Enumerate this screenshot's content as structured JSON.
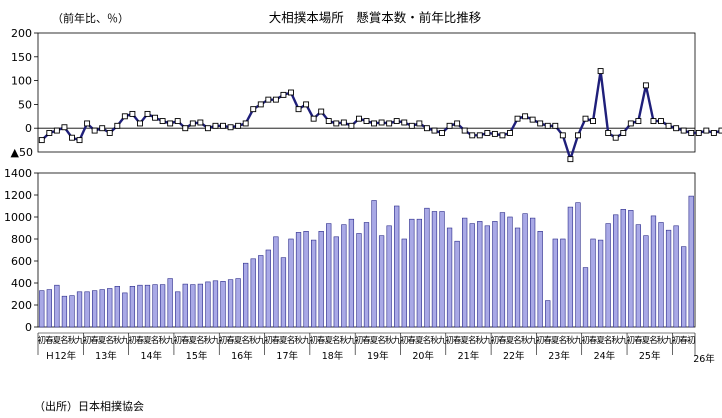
{
  "chart_data": [
    {
      "type": "line",
      "title": "大相撲本場所　懸賞本数・前年比推移",
      "ylabel": "（前年比、％）",
      "ylim": [
        -50,
        200
      ],
      "yticks": [
        200,
        150,
        100,
        50,
        0
      ],
      "neg_tick_label": "▲50",
      "zero_line": true,
      "color": "#1f1f7a",
      "marker": "hollow-square",
      "values": [
        -25,
        -10,
        -5,
        2,
        -20,
        -25,
        10,
        -5,
        0,
        -10,
        5,
        25,
        30,
        10,
        30,
        22,
        15,
        10,
        15,
        0,
        10,
        12,
        0,
        5,
        5,
        2,
        5,
        10,
        40,
        50,
        60,
        60,
        70,
        75,
        40,
        50,
        20,
        35,
        15,
        10,
        12,
        5,
        20,
        15,
        10,
        12,
        10,
        15,
        12,
        5,
        10,
        0,
        -5,
        -10,
        5,
        10,
        -5,
        -15,
        -15,
        -10,
        -12,
        -15,
        -10,
        20,
        25,
        18,
        10,
        5,
        5,
        -15,
        -65,
        -15,
        20,
        15,
        120,
        -10,
        -20,
        -10,
        10,
        15,
        90,
        15,
        15,
        5,
        0,
        -5,
        -10,
        -10,
        -5,
        -10,
        -5,
        10
      ]
    },
    {
      "type": "bar",
      "ylim": [
        0,
        1400
      ],
      "yticks": [
        1400,
        1200,
        1000,
        800,
        600,
        400,
        200,
        0
      ],
      "bar_fill": "#a9a9e6",
      "bar_stroke": "#2a2a8a",
      "season_labels": [
        "初",
        "春",
        "夏",
        "名",
        "秋",
        "九"
      ],
      "last_label": "初",
      "year_labels": [
        "Ｈ12年",
        "13年",
        "14年",
        "15年",
        "16年",
        "17年",
        "18年",
        "19年",
        "20年",
        "21年",
        "22年",
        "23年",
        "24年",
        "25年",
        "26年"
      ],
      "values": [
        330,
        340,
        380,
        280,
        285,
        320,
        320,
        330,
        340,
        350,
        370,
        310,
        370,
        380,
        380,
        385,
        385,
        440,
        320,
        390,
        385,
        390,
        410,
        420,
        415,
        430,
        440,
        580,
        620,
        650,
        700,
        820,
        630,
        800,
        860,
        870,
        790,
        870,
        940,
        820,
        930,
        980,
        850,
        950,
        1150,
        830,
        920,
        1100,
        800,
        980,
        980,
        1080,
        1050,
        1050,
        900,
        780,
        990,
        940,
        960,
        920,
        960,
        1040,
        1000,
        900,
        1030,
        990,
        870,
        240,
        800,
        800,
        1090,
        1130,
        540,
        800,
        790,
        940,
        1020,
        1070,
        1060,
        930,
        830,
        1010,
        950,
        880,
        920,
        730,
        1190
      ]
    }
  ],
  "source": "（出所）日本相撲協会"
}
